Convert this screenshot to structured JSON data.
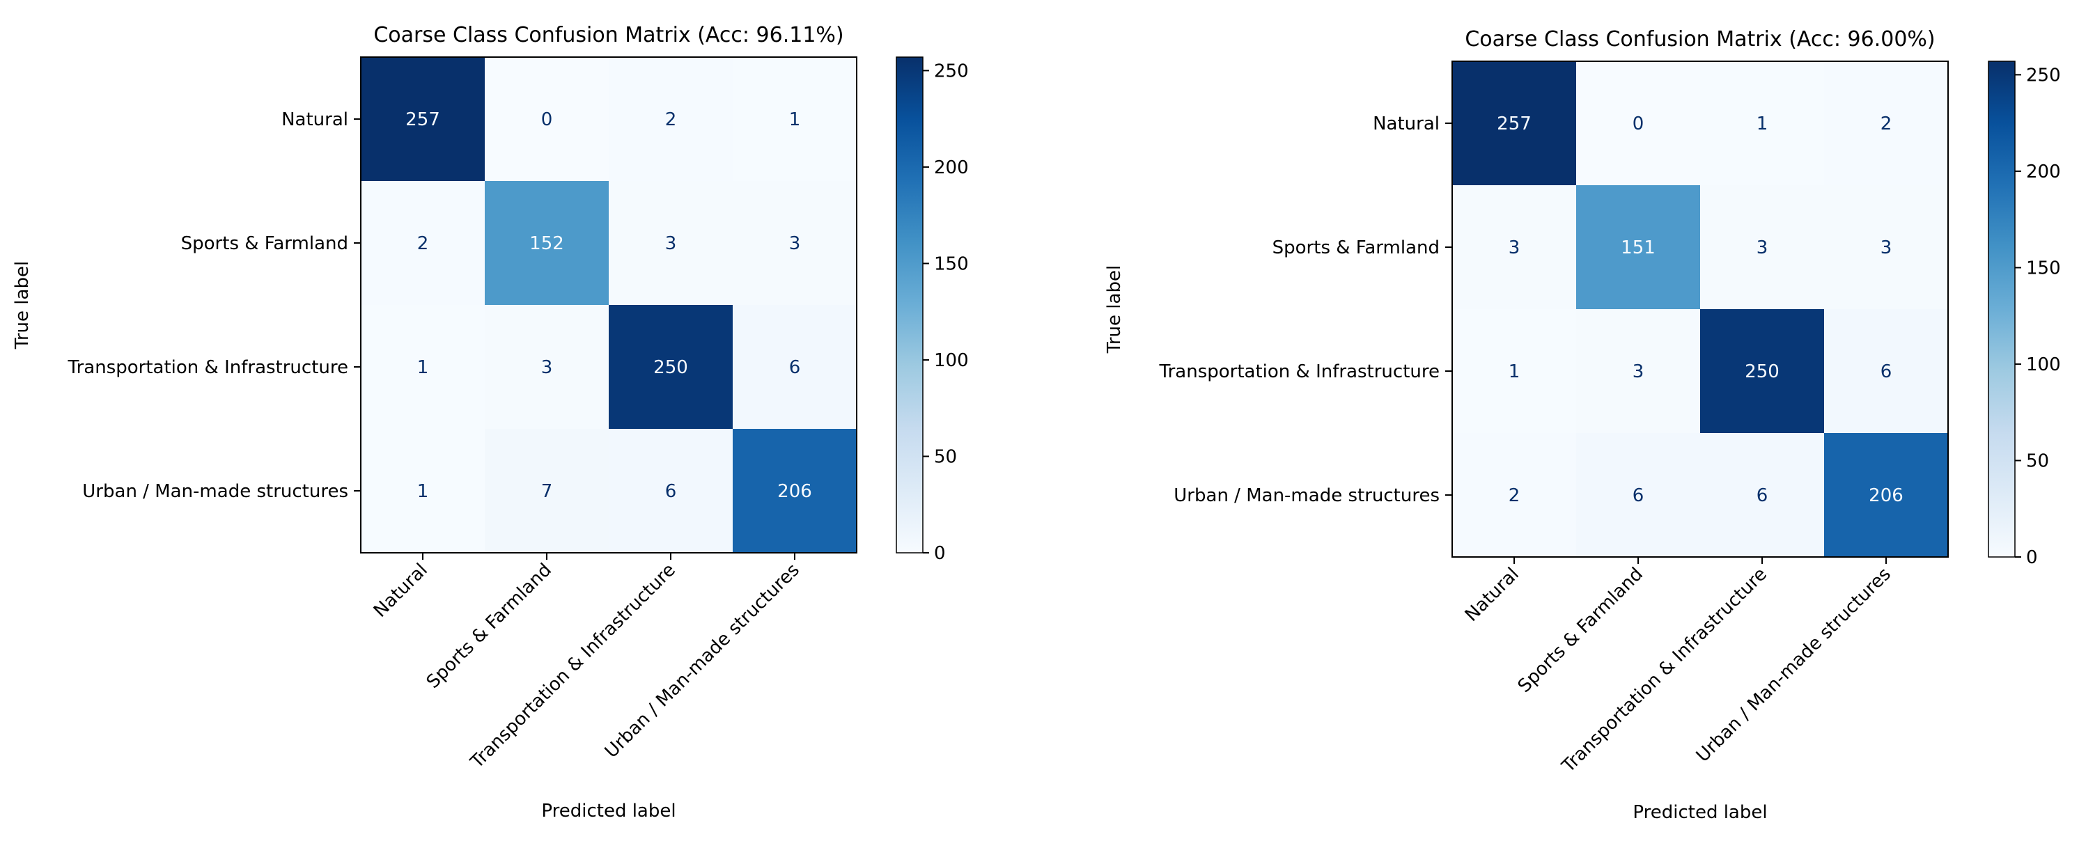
{
  "chart_data": [
    {
      "type": "heatmap",
      "title": "Coarse Class Confusion Matrix (Acc: 96.11%)",
      "xlabel": "Predicted label",
      "ylabel": "True label",
      "x_categories": [
        "Natural",
        "Sports & Farmland",
        "Transportation & Infrastructure",
        "Urban / Man-made structures"
      ],
      "y_categories": [
        "Natural",
        "Sports & Farmland",
        "Transportation & Infrastructure",
        "Urban / Man-made structures"
      ],
      "matrix": [
        [
          257,
          0,
          2,
          1
        ],
        [
          2,
          152,
          3,
          3
        ],
        [
          1,
          3,
          250,
          6
        ],
        [
          1,
          7,
          6,
          206
        ]
      ],
      "colormap": "Blues",
      "vmin": 0,
      "vmax": 257,
      "colorbar_ticks": [
        0,
        50,
        100,
        150,
        200,
        250
      ]
    },
    {
      "type": "heatmap",
      "title": "Coarse Class Confusion Matrix (Acc: 96.00%)",
      "xlabel": "Predicted label",
      "ylabel": "True label",
      "x_categories": [
        "Natural",
        "Sports & Farmland",
        "Transportation & Infrastructure",
        "Urban / Man-made structures"
      ],
      "y_categories": [
        "Natural",
        "Sports & Farmland",
        "Transportation & Infrastructure",
        "Urban / Man-made structures"
      ],
      "matrix": [
        [
          257,
          0,
          1,
          2
        ],
        [
          3,
          151,
          3,
          3
        ],
        [
          1,
          3,
          250,
          6
        ],
        [
          2,
          6,
          6,
          206
        ]
      ],
      "colormap": "Blues",
      "vmin": 0,
      "vmax": 257,
      "colorbar_ticks": [
        0,
        50,
        100,
        150,
        200,
        250
      ]
    }
  ],
  "colors": {
    "blues_low": "#f7fbff",
    "blues_high": "#08306b",
    "axis": "#000000",
    "text_dark": "#08306b",
    "text_light": "#f7fbff"
  }
}
